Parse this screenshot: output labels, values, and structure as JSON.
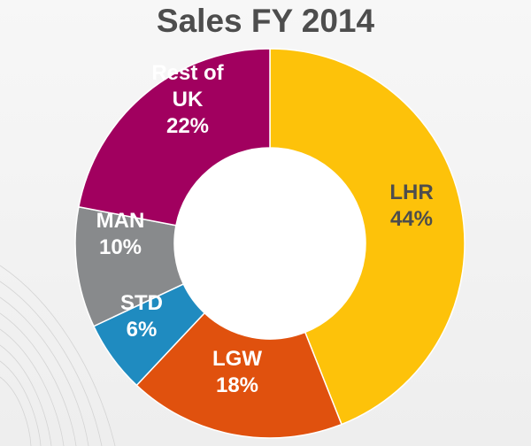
{
  "chart_data": {
    "type": "pie",
    "title": "Sales FY 2014",
    "slices": [
      {
        "label": "LHR",
        "value": 44,
        "display": "44%",
        "color": "#fdc20a",
        "label_color": "#4d4d4d"
      },
      {
        "label": "LGW",
        "value": 18,
        "display": "18%",
        "color": "#e0510e",
        "label_color": "#ffffff"
      },
      {
        "label": "STD",
        "value": 6,
        "display": "6%",
        "color": "#1f8bc0",
        "label_color": "#ffffff"
      },
      {
        "label": "MAN",
        "value": 10,
        "display": "10%",
        "color": "#888a8c",
        "label_color": "#ffffff"
      },
      {
        "label": "Rest of UK",
        "label_lines": [
          "Rest of",
          "UK"
        ],
        "value": 22,
        "display": "22%",
        "color": "#a1005f",
        "label_color": "#ffffff"
      }
    ]
  }
}
